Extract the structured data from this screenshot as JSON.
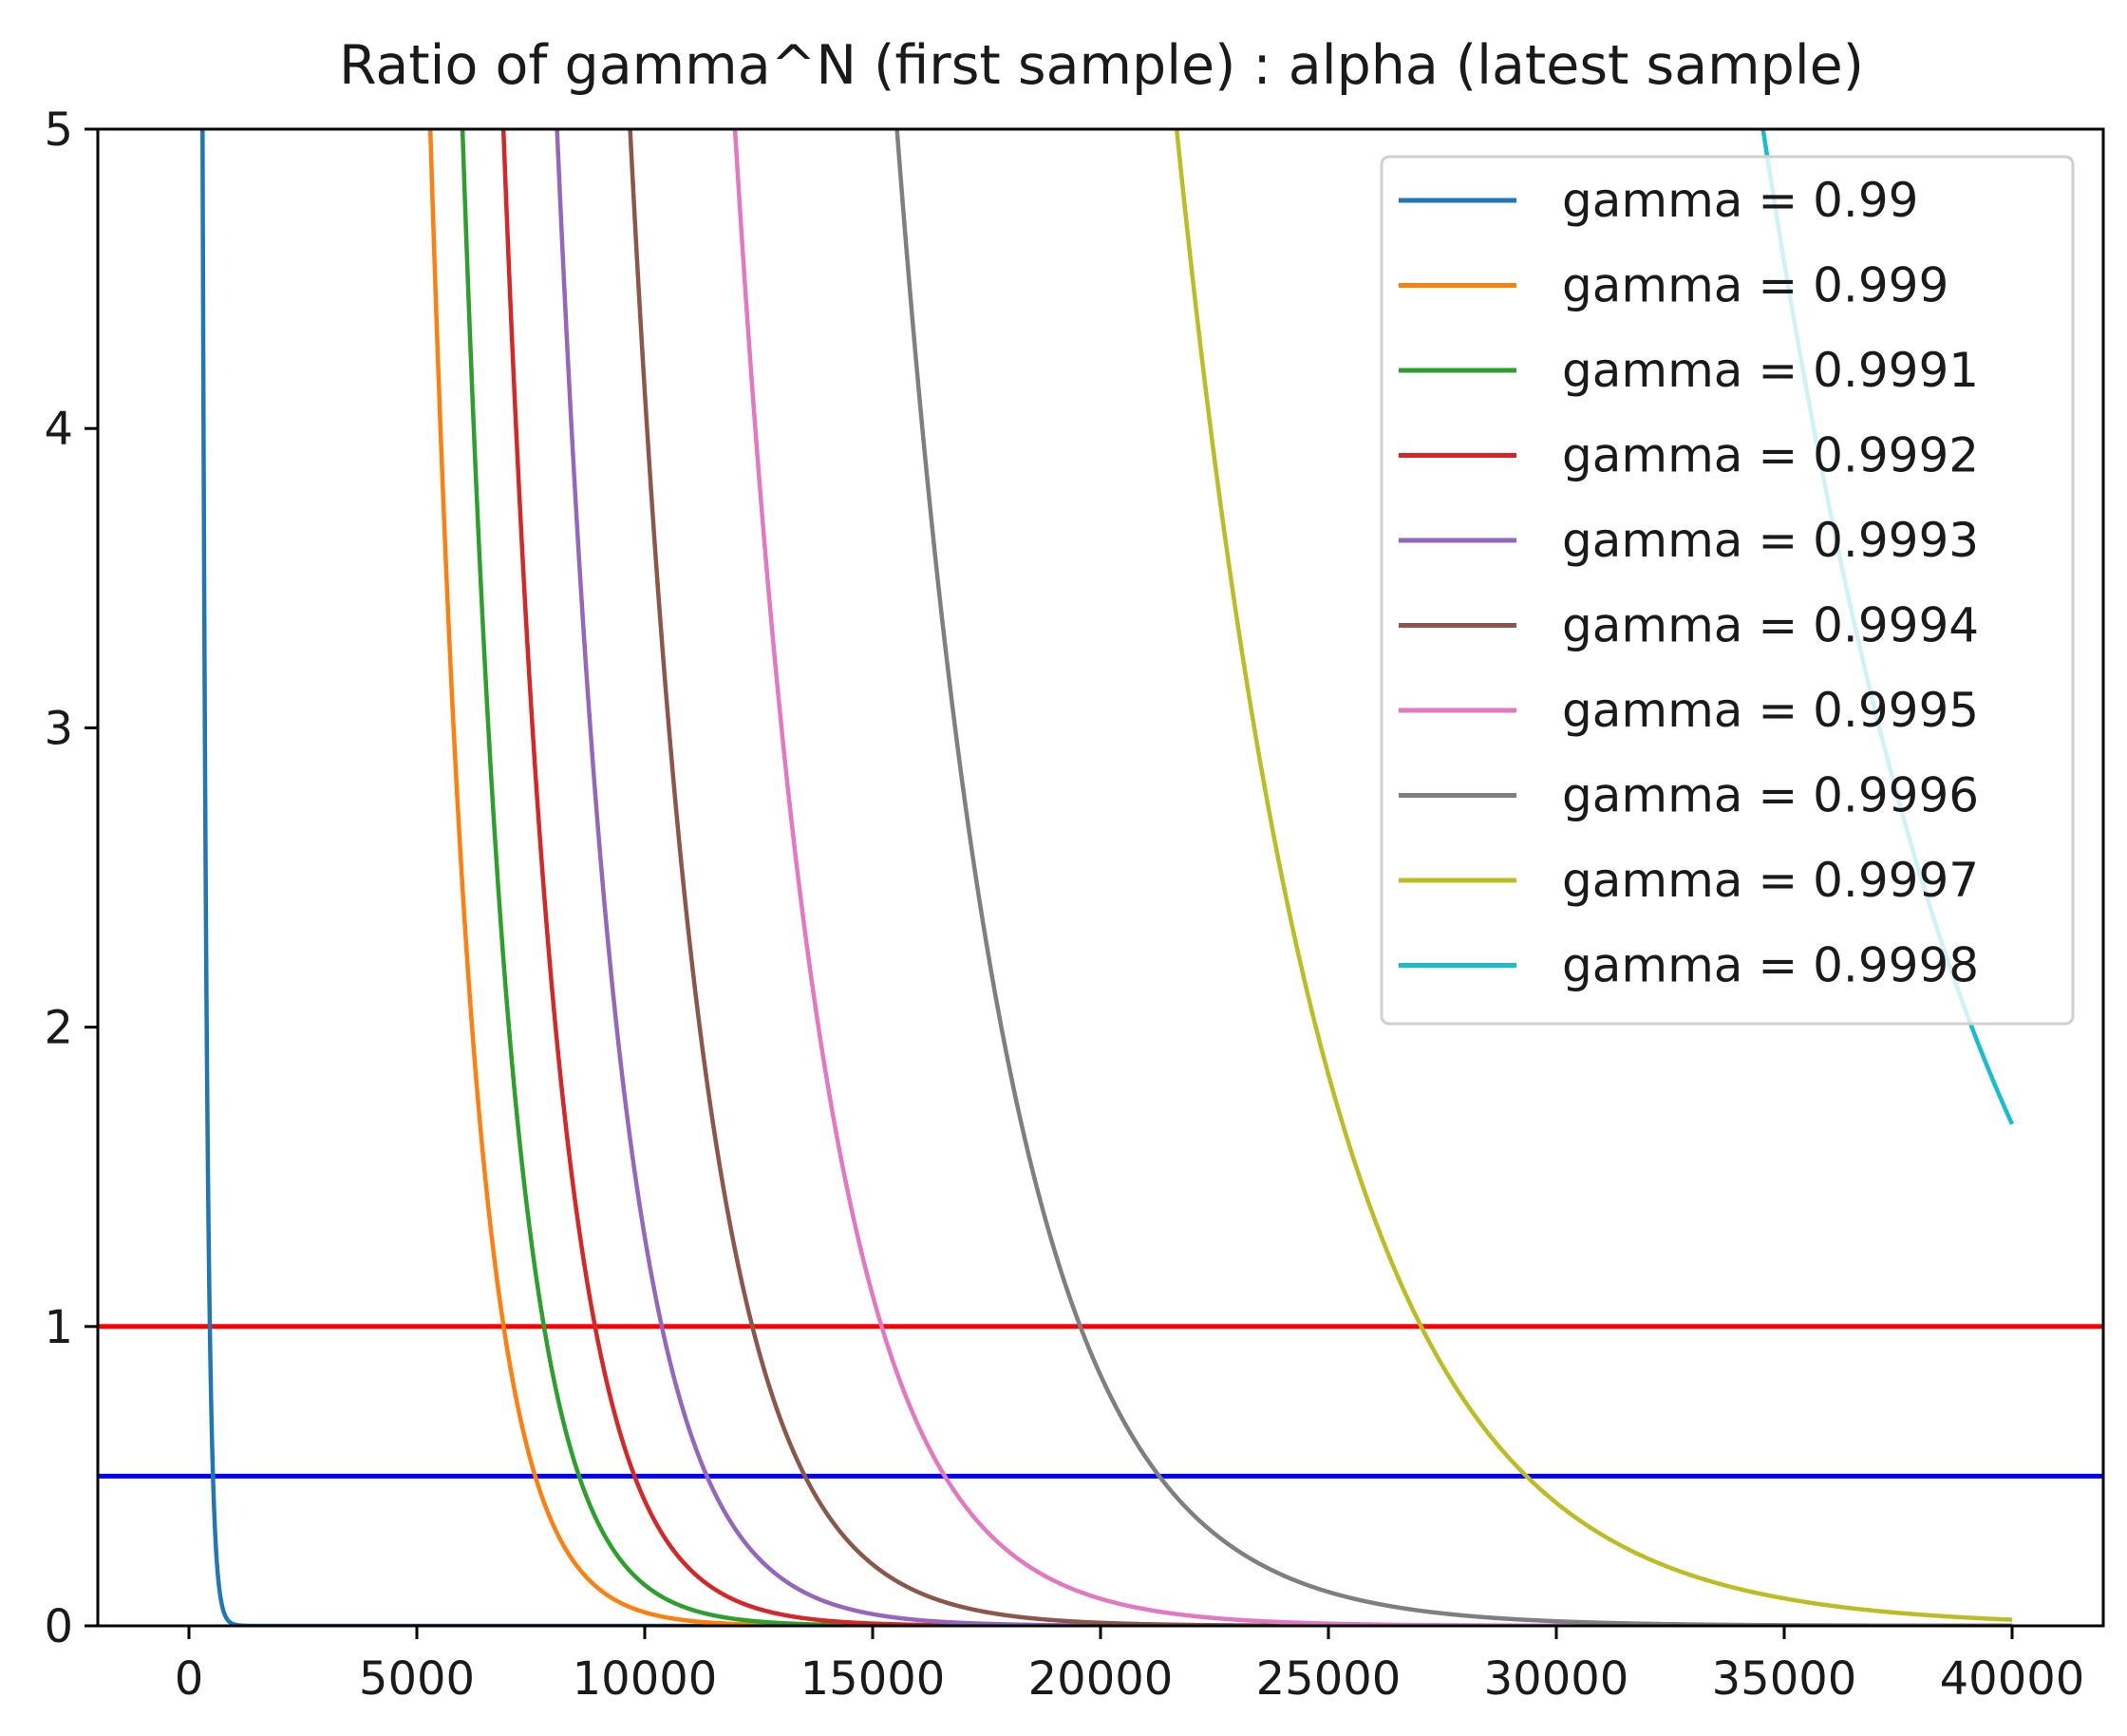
{
  "chart_data": {
    "type": "line",
    "title": "Ratio of gamma^N (first sample) : alpha (latest sample)",
    "xlabel": "",
    "ylabel": "",
    "xlim": [
      -2000,
      42000
    ],
    "ylim": [
      0,
      5
    ],
    "x_ticks": [
      0,
      5000,
      10000,
      15000,
      20000,
      25000,
      30000,
      35000,
      40000
    ],
    "y_ticks": [
      0,
      1,
      2,
      3,
      4,
      5
    ],
    "grid": false,
    "legend_position": "top-right",
    "x_max": 40000,
    "series": [
      {
        "name": "gamma = 0.99",
        "gamma": 0.99,
        "color": "#1f77b4"
      },
      {
        "name": "gamma = 0.999",
        "gamma": 0.999,
        "color": "#ff7f0e"
      },
      {
        "name": "gamma = 0.9991",
        "gamma": 0.9991,
        "color": "#2ca02c"
      },
      {
        "name": "gamma = 0.9992",
        "gamma": 0.9992,
        "color": "#d62728"
      },
      {
        "name": "gamma = 0.9993",
        "gamma": 0.9993,
        "color": "#9467bd"
      },
      {
        "name": "gamma = 0.9994",
        "gamma": 0.9994,
        "color": "#8c564b"
      },
      {
        "name": "gamma = 0.9995",
        "gamma": 0.9995,
        "color": "#e377c2"
      },
      {
        "name": "gamma = 0.9996",
        "gamma": 0.9996,
        "color": "#7f7f7f"
      },
      {
        "name": "gamma = 0.9997",
        "gamma": 0.9997,
        "color": "#bcbd22"
      },
      {
        "name": "gamma = 0.9998",
        "gamma": 0.9998,
        "color": "#17becf"
      }
    ],
    "reference_lines": [
      {
        "y": 1,
        "color": "#ff0000"
      },
      {
        "y": 0.5,
        "color": "#0000ff"
      }
    ]
  }
}
